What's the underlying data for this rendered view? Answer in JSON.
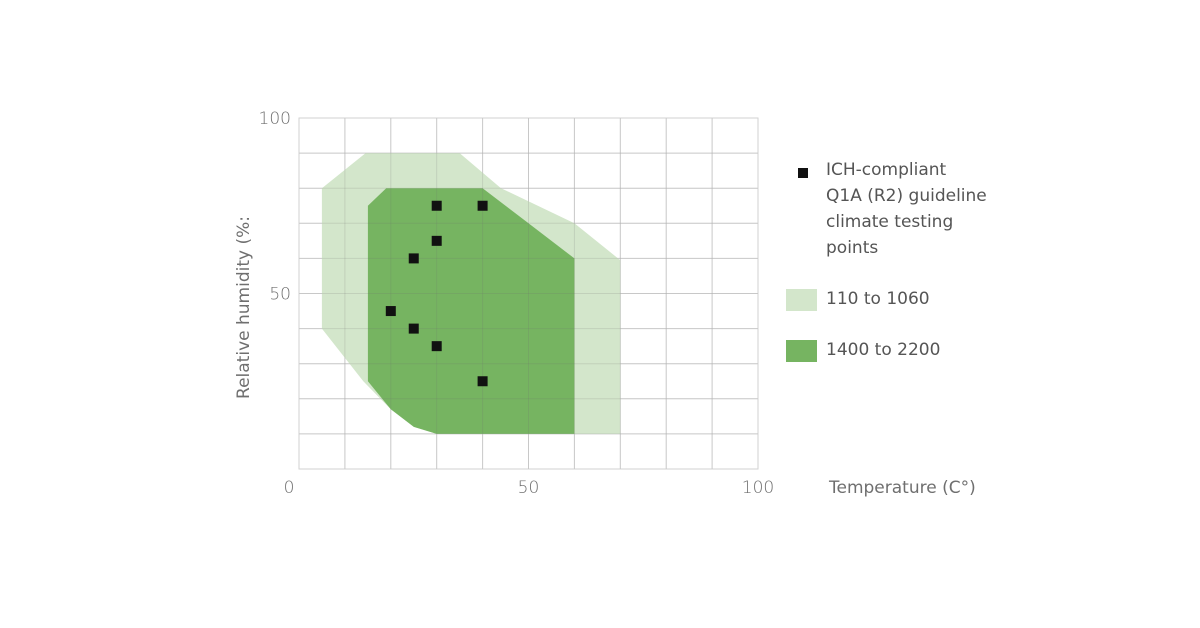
{
  "chart_data": {
    "type": "scatter",
    "xlabel": "Temperature (C°)",
    "ylabel": "Relative humidity (%:",
    "xlim": [
      0,
      100
    ],
    "ylim": [
      0,
      100
    ],
    "x_ticks": [
      "0",
      "50",
      "100"
    ],
    "y_ticks": [
      "100",
      "50"
    ],
    "grid": true,
    "legend_position": "right",
    "areas": [
      {
        "name": "110 to 1060",
        "color": "#d3e6cb",
        "polygon": [
          [
            5,
            40
          ],
          [
            5,
            80
          ],
          [
            14.5,
            90
          ],
          [
            35,
            90
          ],
          [
            44,
            80
          ],
          [
            60,
            70
          ],
          [
            70,
            59.5
          ],
          [
            70,
            10
          ],
          [
            30,
            10
          ],
          [
            25,
            12
          ],
          [
            20,
            17
          ],
          [
            14,
            25
          ]
        ]
      },
      {
        "name": "1400 to 2200",
        "color": "#76b461",
        "polygon": [
          [
            15,
            25
          ],
          [
            15,
            75
          ],
          [
            19,
            80
          ],
          [
            40,
            80
          ],
          [
            50,
            70
          ],
          [
            60,
            60
          ],
          [
            60,
            10
          ],
          [
            30,
            10
          ],
          [
            25,
            12
          ],
          [
            20,
            17
          ]
        ]
      }
    ],
    "series": [
      {
        "name": "ICH-compliant Q1A (R2) guideline climate testing points",
        "color": "#111111",
        "points": [
          [
            30,
            75
          ],
          [
            40,
            75
          ],
          [
            30,
            65
          ],
          [
            25,
            60
          ],
          [
            20,
            45
          ],
          [
            25,
            40
          ],
          [
            30,
            35
          ],
          [
            40,
            25
          ]
        ]
      }
    ],
    "legend": [
      {
        "kind": "marker",
        "color": "#111111",
        "lines": [
          "ICH-compliant",
          "Q1A (R2) guideline",
          "climate testing",
          "points"
        ]
      },
      {
        "kind": "area",
        "color": "#d3e6cb",
        "lines": [
          "110 to 1060"
        ]
      },
      {
        "kind": "area",
        "color": "#76b461",
        "lines": [
          "1400 to 2200"
        ]
      }
    ]
  }
}
